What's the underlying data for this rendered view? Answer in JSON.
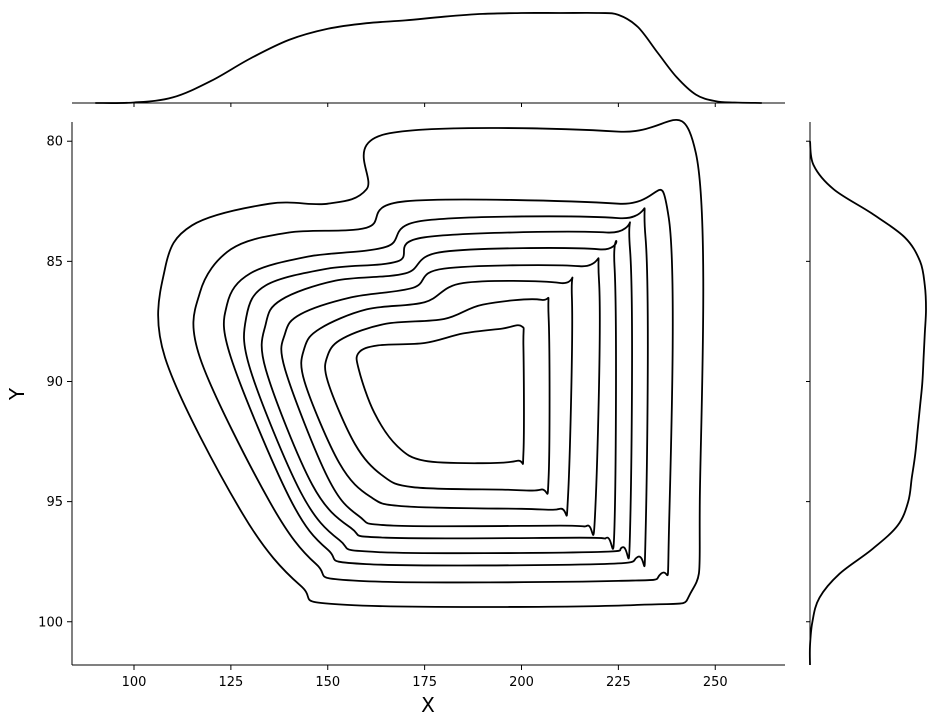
{
  "chart_data": {
    "type": "contour",
    "title": "",
    "xlabel": "X",
    "ylabel": "Y",
    "xlim": [
      84,
      268
    ],
    "ylim": [
      101.8,
      79.2
    ],
    "y_inverted": true,
    "xticks": [
      100,
      125,
      150,
      175,
      200,
      225,
      250
    ],
    "yticks": [
      80,
      85,
      90,
      95,
      100
    ],
    "grid": false,
    "legend": "none",
    "color": "#000000",
    "marginal_top": {
      "type": "kde",
      "x": [
        90,
        100,
        110,
        120,
        130,
        140,
        150,
        160,
        170,
        180,
        190,
        200,
        210,
        220,
        225,
        230,
        235,
        240,
        245,
        250,
        255,
        262
      ],
      "density": [
        0.0,
        0.005,
        0.06,
        0.24,
        0.48,
        0.68,
        0.8,
        0.86,
        0.89,
        0.93,
        0.96,
        0.97,
        0.97,
        0.97,
        0.95,
        0.82,
        0.55,
        0.28,
        0.09,
        0.02,
        0.005,
        0.0
      ]
    },
    "marginal_right": {
      "type": "kde",
      "y": [
        80.0,
        81.0,
        82.0,
        83.0,
        84.0,
        85.0,
        86.0,
        87.0,
        88.0,
        89.0,
        90.0,
        91.0,
        92.0,
        93.0,
        94.0,
        95.0,
        96.0,
        97.0,
        98.0,
        99.0,
        100.0,
        101.0,
        101.8
      ],
      "density": [
        0.0,
        0.03,
        0.2,
        0.52,
        0.8,
        0.93,
        0.97,
        0.98,
        0.97,
        0.96,
        0.95,
        0.93,
        0.91,
        0.89,
        0.86,
        0.83,
        0.74,
        0.52,
        0.25,
        0.08,
        0.02,
        0.0,
        0.0
      ]
    },
    "contour_levels": [
      {
        "level": 1,
        "points": [
          [
            165,
            79.7
          ],
          [
            225,
            79.6
          ],
          [
            245,
            80.5
          ],
          [
            246,
            95.0
          ],
          [
            244,
            98.7
          ],
          [
            230,
            99.3
          ],
          [
            155,
            99.3
          ],
          [
            143,
            98.5
          ],
          [
            128,
            95.5
          ],
          [
            108,
            89.0
          ],
          [
            108,
            85.3
          ],
          [
            115,
            83.5
          ],
          [
            135,
            82.6
          ],
          [
            150,
            82.6
          ],
          [
            160,
            82.0
          ]
        ]
      },
      {
        "level": 2,
        "points": [
          [
            170,
            82.5
          ],
          [
            225,
            82.6
          ],
          [
            238,
            83.2
          ],
          [
            238,
            96.5
          ],
          [
            236,
            98.0
          ],
          [
            225,
            98.3
          ],
          [
            158,
            98.3
          ],
          [
            147,
            97.6
          ],
          [
            135,
            95.0
          ],
          [
            117,
            89.0
          ],
          [
            117,
            86.3
          ],
          [
            125,
            84.5
          ],
          [
            140,
            83.8
          ],
          [
            160,
            83.6
          ]
        ]
      },
      {
        "level": 3,
        "points": [
          [
            175,
            83.3
          ],
          [
            225,
            83.2
          ],
          [
            232,
            84.0
          ],
          [
            232,
            96.5
          ],
          [
            230,
            97.3
          ],
          [
            220,
            97.6
          ],
          [
            160,
            97.6
          ],
          [
            150,
            97.0
          ],
          [
            140,
            94.8
          ],
          [
            125,
            89.0
          ],
          [
            124,
            86.8
          ],
          [
            130,
            85.5
          ],
          [
            145,
            84.8
          ],
          [
            165,
            84.4
          ]
        ]
      },
      {
        "level": 4,
        "points": [
          [
            175,
            84.0
          ],
          [
            222,
            83.8
          ],
          [
            228,
            84.5
          ],
          [
            228,
            96.3
          ],
          [
            226,
            96.9
          ],
          [
            218,
            97.1
          ],
          [
            163,
            97.1
          ],
          [
            153,
            96.6
          ],
          [
            143,
            94.6
          ],
          [
            130,
            89.5
          ],
          [
            129,
            87.3
          ],
          [
            134,
            86.0
          ],
          [
            150,
            85.3
          ],
          [
            168,
            85.0
          ]
        ]
      },
      {
        "level": 5,
        "points": [
          [
            180,
            84.6
          ],
          [
            220,
            84.5
          ],
          [
            224,
            85.2
          ],
          [
            224,
            96.0
          ],
          [
            222,
            96.5
          ],
          [
            215,
            96.5
          ],
          [
            165,
            96.5
          ],
          [
            156,
            96.1
          ],
          [
            146,
            94.3
          ],
          [
            134,
            89.5
          ],
          [
            134,
            87.6
          ],
          [
            138,
            86.6
          ],
          [
            152,
            85.8
          ],
          [
            170,
            85.5
          ]
        ]
      },
      {
        "level": 6,
        "points": [
          [
            180,
            85.3
          ],
          [
            215,
            85.2
          ],
          [
            220,
            85.8
          ],
          [
            219,
            95.5
          ],
          [
            217,
            96.0
          ],
          [
            210,
            96.0
          ],
          [
            167,
            96.0
          ],
          [
            158,
            95.6
          ],
          [
            150,
            94.0
          ],
          [
            139,
            89.5
          ],
          [
            139,
            88.0
          ],
          [
            143,
            87.2
          ],
          [
            156,
            86.5
          ],
          [
            172,
            86.1
          ]
        ]
      },
      {
        "level": 7,
        "points": [
          [
            185,
            85.9
          ],
          [
            210,
            85.9
          ],
          [
            213,
            86.5
          ],
          [
            212,
            94.8
          ],
          [
            210,
            95.3
          ],
          [
            200,
            95.3
          ],
          [
            170,
            95.2
          ],
          [
            161,
            94.8
          ],
          [
            153,
            93.4
          ],
          [
            144,
            90.0
          ],
          [
            144,
            88.6
          ],
          [
            148,
            87.8
          ],
          [
            160,
            87.0
          ],
          [
            175,
            86.7
          ]
        ]
      },
      {
        "level": 8,
        "points": [
          [
            190,
            86.8
          ],
          [
            205,
            86.6
          ],
          [
            207,
            87.3
          ],
          [
            207,
            94.0
          ],
          [
            205,
            94.5
          ],
          [
            195,
            94.5
          ],
          [
            172,
            94.4
          ],
          [
            164,
            93.9
          ],
          [
            157,
            92.6
          ],
          [
            150,
            90.0
          ],
          [
            150,
            88.9
          ],
          [
            154,
            88.2
          ],
          [
            165,
            87.6
          ],
          [
            180,
            87.4
          ]
        ]
      },
      {
        "level": 9,
        "points": [
          [
            195,
            87.8
          ],
          [
            200,
            87.7
          ],
          [
            200.5,
            88.5
          ],
          [
            200.5,
            93.0
          ],
          [
            199,
            93.3
          ],
          [
            190,
            93.4
          ],
          [
            175,
            93.3
          ],
          [
            168,
            92.7
          ],
          [
            162,
            91.3
          ],
          [
            158,
            89.5
          ],
          [
            158,
            88.8
          ],
          [
            163,
            88.5
          ],
          [
            175,
            88.4
          ],
          [
            185,
            88.0
          ]
        ]
      }
    ]
  }
}
